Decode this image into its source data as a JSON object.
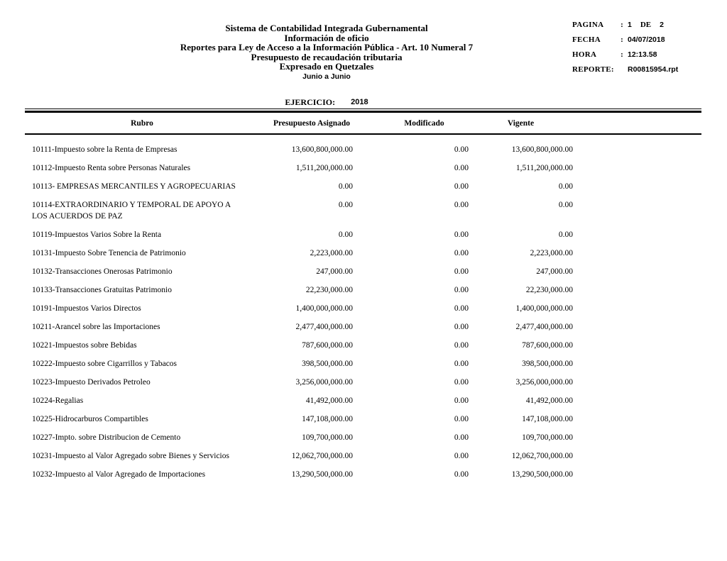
{
  "report": {
    "title_lines": [
      "Sistema de Contabilidad Integrada Gubernamental",
      "Información de oficio",
      "Reportes para Ley de Acceso a la Información Pública - Art. 10 Numeral 7",
      "Presupuesto de recaudación tributaria",
      "Expresado en Quetzales"
    ],
    "period": "Junio  a  Junio",
    "ejercicio_label": "EJERCICIO:",
    "ejercicio_value": "2018"
  },
  "meta": {
    "pagina_label": "PAGINA",
    "colon": ":",
    "pagina_value": "1",
    "pagina_de_label": "DE",
    "pagina_total": "2",
    "fecha_label": "FECHA",
    "fecha_value": "04/07/2018",
    "hora_label": "HORA",
    "hora_value": "12:13.58",
    "reporte_label": "REPORTE:",
    "reporte_value": "R00815954.rpt"
  },
  "table": {
    "columns": {
      "rubro": "Rubro",
      "asignado": "Presupuesto Asignado",
      "modificado": "Modificado",
      "vigente": "Vigente"
    },
    "rows": [
      {
        "rubro": "10111-Impuesto sobre la Renta de Empresas",
        "asignado": "13,600,800,000.00",
        "modificado": "0.00",
        "vigente": "13,600,800,000.00"
      },
      {
        "rubro": "10112-Impuesto Renta sobre Personas Naturales",
        "asignado": "1,511,200,000.00",
        "modificado": "0.00",
        "vigente": "1,511,200,000.00"
      },
      {
        "rubro": "10113- EMPRESAS MERCANTILES Y AGROPECUARIAS",
        "asignado": "0.00",
        "modificado": "0.00",
        "vigente": "0.00"
      },
      {
        "rubro": "10114-EXTRAORDINARIO Y TEMPORAL DE APOYO A LOS ACUERDOS DE PAZ",
        "asignado": "0.00",
        "modificado": "0.00",
        "vigente": "0.00"
      },
      {
        "rubro": "10119-Impuestos Varios Sobre la Renta",
        "asignado": "0.00",
        "modificado": "0.00",
        "vigente": "0.00"
      },
      {
        "rubro": "10131-Impuesto Sobre Tenencia de Patrimonio",
        "asignado": "2,223,000.00",
        "modificado": "0.00",
        "vigente": "2,223,000.00"
      },
      {
        "rubro": "10132-Transacciones Onerosas Patrimonio",
        "asignado": "247,000.00",
        "modificado": "0.00",
        "vigente": "247,000.00"
      },
      {
        "rubro": "10133-Transacciones Gratuitas Patrimonio",
        "asignado": "22,230,000.00",
        "modificado": "0.00",
        "vigente": "22,230,000.00"
      },
      {
        "rubro": "10191-Impuestos Varios Directos",
        "asignado": "1,400,000,000.00",
        "modificado": "0.00",
        "vigente": "1,400,000,000.00"
      },
      {
        "rubro": "10211-Arancel sobre las Importaciones",
        "asignado": "2,477,400,000.00",
        "modificado": "0.00",
        "vigente": "2,477,400,000.00"
      },
      {
        "rubro": "10221-Impuestos sobre Bebidas",
        "asignado": "787,600,000.00",
        "modificado": "0.00",
        "vigente": "787,600,000.00"
      },
      {
        "rubro": "10222-Impuesto sobre Cigarrillos y Tabacos",
        "asignado": "398,500,000.00",
        "modificado": "0.00",
        "vigente": "398,500,000.00"
      },
      {
        "rubro": "10223-Impuesto Derivados Petroleo",
        "asignado": "3,256,000,000.00",
        "modificado": "0.00",
        "vigente": "3,256,000,000.00"
      },
      {
        "rubro": "10224-Regalias",
        "asignado": "41,492,000.00",
        "modificado": "0.00",
        "vigente": "41,492,000.00"
      },
      {
        "rubro": "10225-Hidrocarburos Compartibles",
        "asignado": "147,108,000.00",
        "modificado": "0.00",
        "vigente": "147,108,000.00"
      },
      {
        "rubro": "10227-Impto. sobre Distribucion de Cemento",
        "asignado": "109,700,000.00",
        "modificado": "0.00",
        "vigente": "109,700,000.00"
      },
      {
        "rubro": "10231-Impuesto al Valor Agregado sobre Bienes y Servicios",
        "asignado": "12,062,700,000.00",
        "modificado": "0.00",
        "vigente": "12,062,700,000.00"
      },
      {
        "rubro": "10232-Impuesto al Valor Agregado de Importaciones",
        "asignado": "13,290,500,000.00",
        "modificado": "0.00",
        "vigente": "13,290,500,000.00"
      }
    ]
  },
  "colors": {
    "text": "#000000",
    "background": "#ffffff"
  }
}
